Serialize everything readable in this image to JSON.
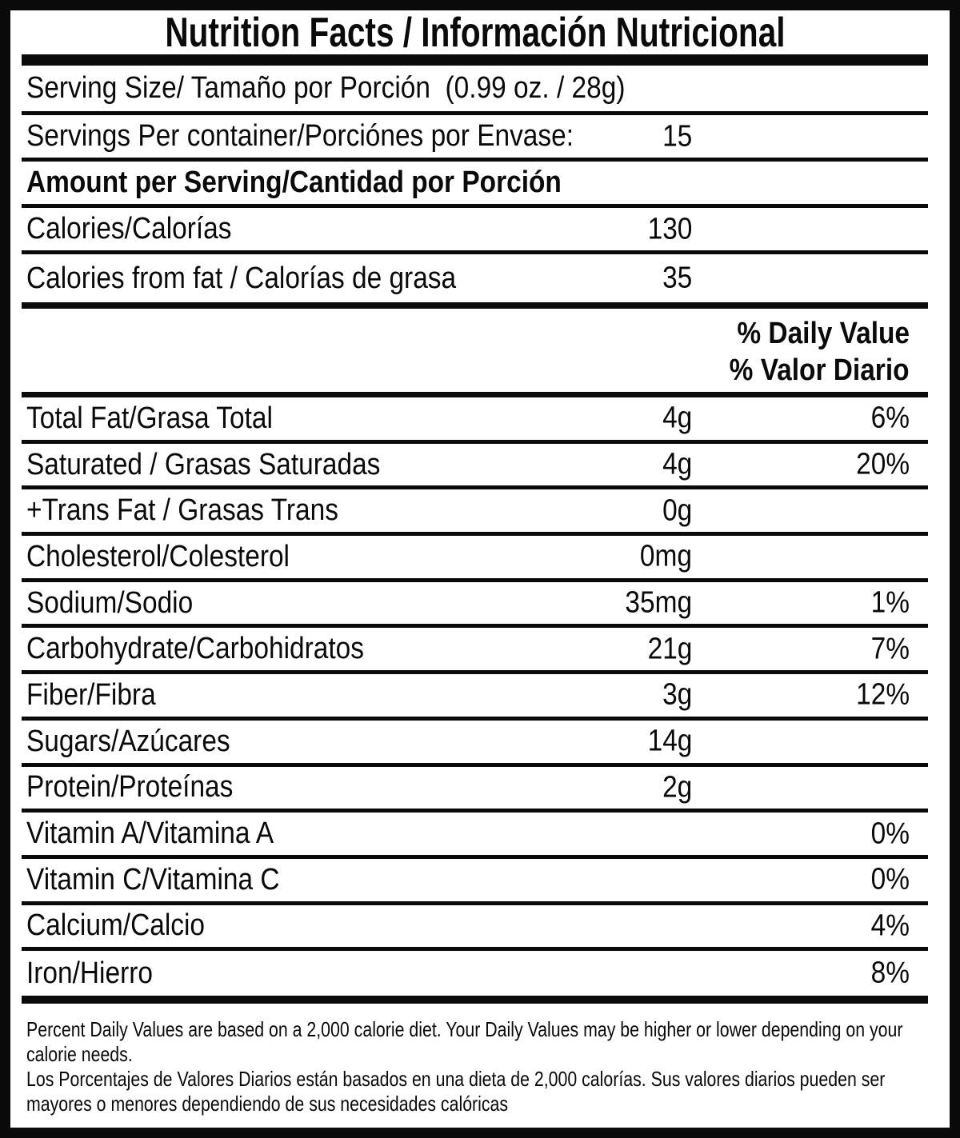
{
  "title": "Nutrition Facts / Información Nutricional",
  "serving_size": {
    "label": "Serving Size/ Tamaño por Porción  (0.99 oz. / 28g)"
  },
  "servings_per_container": {
    "label": "Servings Per container/Porciónes por Envase:",
    "value": "15"
  },
  "amount_per_serving_header": "Amount per Serving/Cantidad por Porción",
  "calories": {
    "label": "Calories/Calorías",
    "value": "130"
  },
  "calories_from_fat": {
    "label": "Calories from fat / Calorías de grasa",
    "value": "35"
  },
  "daily_value_header": {
    "en": "% Daily Value",
    "es": "% Valor Diario"
  },
  "nutrients": [
    {
      "label": "Total Fat/Grasa Total",
      "amount": "4g",
      "dv": "6%"
    },
    {
      "label": "Saturated / Grasas Saturadas",
      "amount": "4g",
      "dv": "20%"
    },
    {
      "label": "+Trans Fat / Grasas Trans",
      "amount": "0g",
      "dv": ""
    },
    {
      "label": "Cholesterol/Colesterol",
      "amount": "0mg",
      "dv": ""
    },
    {
      "label": "Sodium/Sodio",
      "amount": "35mg",
      "dv": "1%"
    },
    {
      "label": "Carbohydrate/Carbohidratos",
      "amount": "21g",
      "dv": "7%"
    },
    {
      "label": "Fiber/Fibra",
      "amount": "3g",
      "dv": "12%"
    },
    {
      "label": "Sugars/Azúcares",
      "amount": "14g",
      "dv": ""
    },
    {
      "label": "Protein/Proteínas",
      "amount": "2g",
      "dv": ""
    },
    {
      "label": "Vitamin A/Vitamina A",
      "amount": "",
      "dv": "0%"
    },
    {
      "label": "Vitamin C/Vitamina C",
      "amount": "",
      "dv": "0%"
    },
    {
      "label": "Calcium/Calcio",
      "amount": "",
      "dv": "4%"
    },
    {
      "label": "Iron/Hierro",
      "amount": "",
      "dv": "8%"
    }
  ],
  "footnote": {
    "lines": [
      "Percent Daily Values are based on a 2,000 calorie diet. Your Daily Values may be higher or lower depending on your",
      "calorie needs.",
      "Los Porcentajes de Valores Diarios están basados en una dieta de 2,000 calorías. Sus valores diarios pueden ser",
      "mayores o menores dependiendo de sus necesidades calóricas"
    ]
  },
  "colors": {
    "ink": "#0a0a0a",
    "background": "#ffffff"
  }
}
